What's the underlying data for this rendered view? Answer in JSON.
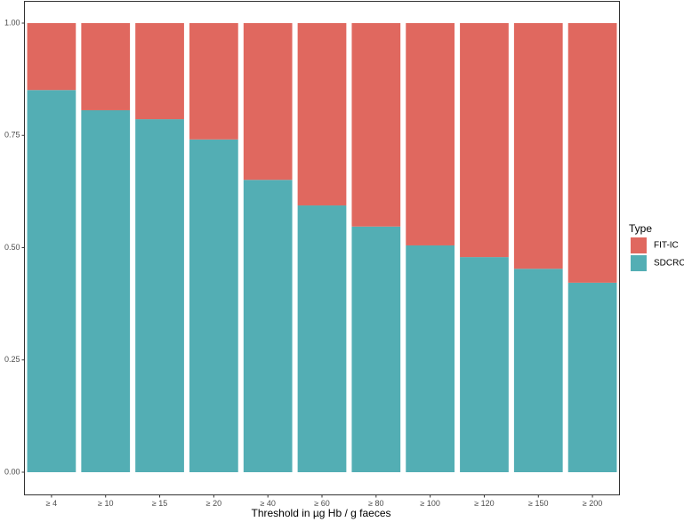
{
  "chart_data": {
    "type": "stacked-bar",
    "categories": [
      "≥ 4",
      "≥ 10",
      "≥ 15",
      "≥ 20",
      "≥ 40",
      "≥ 60",
      "≥ 80",
      "≥ 100",
      "≥ 120",
      "≥ 150",
      "≥ 200"
    ],
    "series": [
      {
        "name": "FIT-IC",
        "color": "#e0685f",
        "values": [
          0.149,
          0.194,
          0.214,
          0.259,
          0.349,
          0.406,
          0.453,
          0.495,
          0.521,
          0.547,
          0.578
        ]
      },
      {
        "name": "SDCRC",
        "color": "#53aeb4",
        "values": [
          0.851,
          0.806,
          0.786,
          0.741,
          0.651,
          0.594,
          0.547,
          0.505,
          0.479,
          0.453,
          0.422
        ]
      }
    ],
    "ylim": [
      0,
      1
    ],
    "yticks": [
      {
        "value": 0,
        "label": "0.00"
      },
      {
        "value": 0.25,
        "label": "0.25"
      },
      {
        "value": 0.5,
        "label": "0.50"
      },
      {
        "value": 0.75,
        "label": "0.75"
      },
      {
        "value": 1,
        "label": "1.00"
      }
    ],
    "x_label": "Threshold in µg Hb / g faeces",
    "legend_title": "Type",
    "legend_position": "right"
  }
}
